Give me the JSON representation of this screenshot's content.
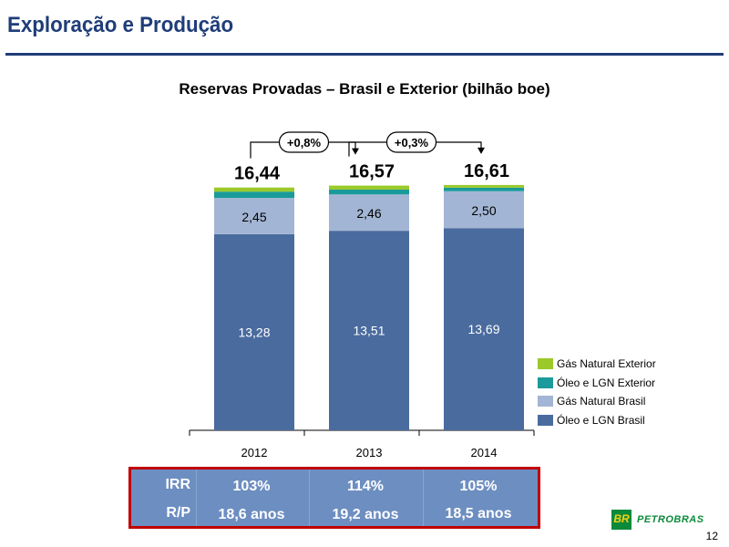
{
  "page": {
    "title": "Exploração e Produção",
    "page_number": "12",
    "logo_text": "PETROBRAS",
    "logo_mark": "BR"
  },
  "chart_data": {
    "type": "bar",
    "stacked": true,
    "title": "Reservas Provadas – Brasil e Exterior (bilhão boe)",
    "xlabel": "",
    "ylabel": "",
    "grid": false,
    "legend_position": "right",
    "categories": [
      "2012",
      "2013",
      "2014"
    ],
    "series": [
      {
        "name": "Óleo e LGN Brasil",
        "color": "#4a6b9e",
        "values": [
          13.28,
          13.51,
          13.69
        ],
        "labels": [
          "13,28",
          "13,51",
          "13,69"
        ]
      },
      {
        "name": "Gás Natural Brasil",
        "color": "#a3b5d5",
        "values": [
          2.45,
          2.46,
          2.5
        ],
        "labels": [
          "2,45",
          "2,46",
          "2,50"
        ]
      },
      {
        "name": "Óleo e LGN Exterior",
        "color": "#1a9a9a",
        "values": [
          0.43,
          0.33,
          0.24
        ]
      },
      {
        "name": "Gás Natural Exterior",
        "color": "#9bc92a",
        "values": [
          0.28,
          0.27,
          0.18
        ]
      }
    ],
    "totals": [
      "16,44",
      "16,57",
      "16,61"
    ],
    "total_values": [
      16.44,
      16.57,
      16.61
    ],
    "annotations": [
      {
        "from": "2012",
        "to": "2013",
        "text": "+0,8%"
      },
      {
        "from": "2013",
        "to": "2014",
        "text": "+0,3%"
      }
    ]
  },
  "stats_table": {
    "rows": [
      {
        "label": "IRR",
        "values": [
          "103%",
          "114%",
          "105%"
        ]
      },
      {
        "label": "R/P",
        "values": [
          "18,6 anos",
          "19,2 anos",
          "18,5 anos"
        ]
      }
    ]
  }
}
